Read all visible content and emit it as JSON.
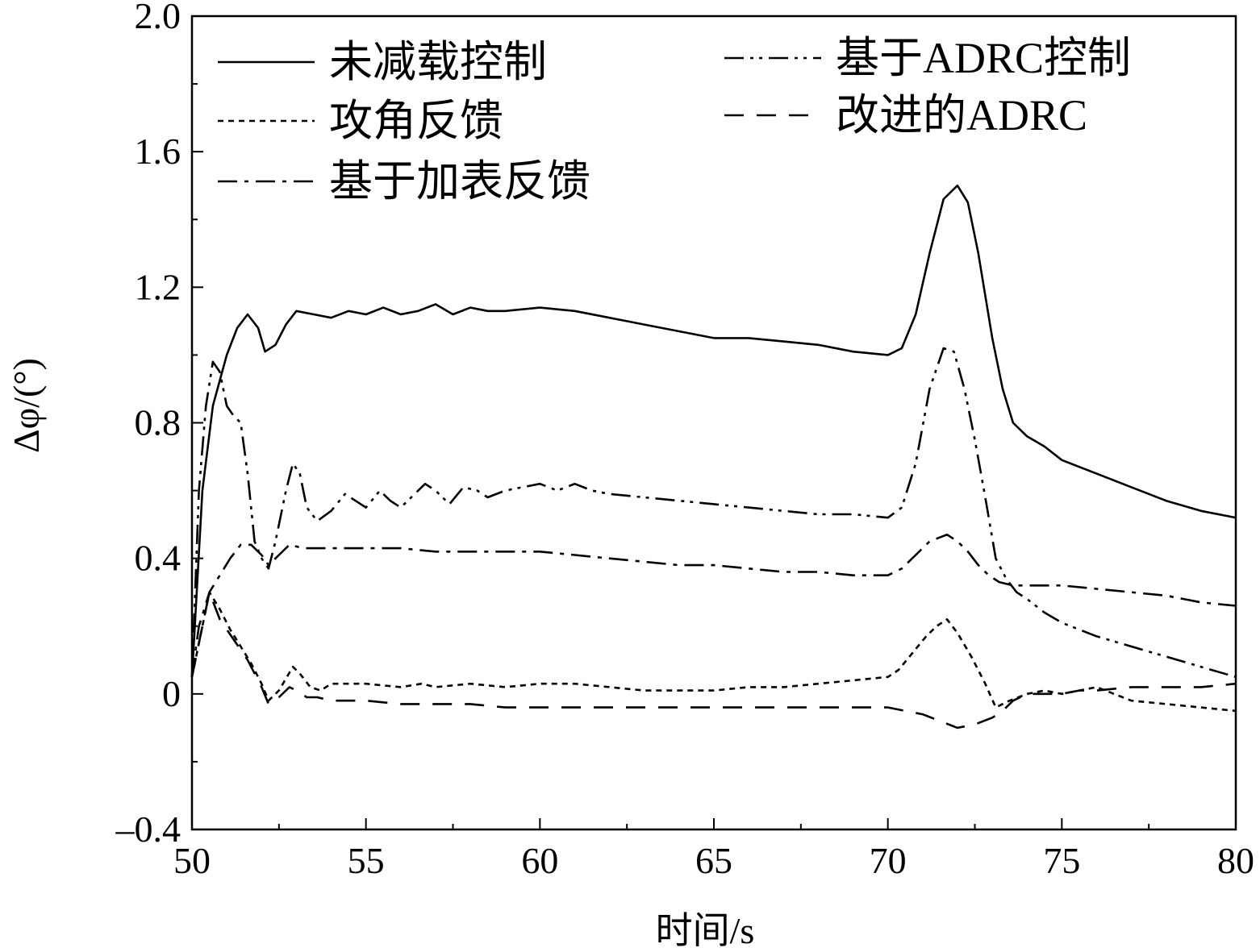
{
  "chart_data": {
    "type": "line",
    "xlabel": "时间/s",
    "ylabel": "Δφ/(°)",
    "xlim": [
      50,
      80
    ],
    "ylim": [
      -0.4,
      2.0
    ],
    "xticks": [
      50,
      55,
      60,
      65,
      70,
      75,
      80
    ],
    "xtick_labels": [
      "50",
      "55",
      "60",
      "65",
      "70",
      "75",
      "80"
    ],
    "yticks": [
      -0.4,
      0,
      0.4,
      0.8,
      1.2,
      1.6,
      2.0
    ],
    "ytick_labels": [
      "–0.4",
      "0",
      "0.4",
      "0.8",
      "1.2",
      "1.6",
      "2.0"
    ],
    "grid": false,
    "legend_placement": "top",
    "series": [
      {
        "name": "未减载控制",
        "style": "solid",
        "x": [
          50,
          50.3,
          50.6,
          51.0,
          51.3,
          51.6,
          51.9,
          52.1,
          52.4,
          52.7,
          53.0,
          53.5,
          54.0,
          54.5,
          55.0,
          55.5,
          56.0,
          56.5,
          57.0,
          57.5,
          58.0,
          58.5,
          59.0,
          60.0,
          61.0,
          62.0,
          63.0,
          64.0,
          65.0,
          66.0,
          67.0,
          68.0,
          69.0,
          70.0,
          70.4,
          70.8,
          71.2,
          71.6,
          72.0,
          72.3,
          72.6,
          73.0,
          73.3,
          73.6,
          74.0,
          74.5,
          75.0,
          75.5,
          76.0,
          77.0,
          78.0,
          79.0,
          80.0
        ],
        "y": [
          0.05,
          0.6,
          0.85,
          1.0,
          1.08,
          1.12,
          1.08,
          1.01,
          1.03,
          1.09,
          1.13,
          1.12,
          1.11,
          1.13,
          1.12,
          1.14,
          1.12,
          1.13,
          1.15,
          1.12,
          1.14,
          1.13,
          1.13,
          1.14,
          1.13,
          1.11,
          1.09,
          1.07,
          1.05,
          1.05,
          1.04,
          1.03,
          1.01,
          1.0,
          1.02,
          1.12,
          1.3,
          1.46,
          1.5,
          1.45,
          1.3,
          1.05,
          0.9,
          0.8,
          0.76,
          0.73,
          0.69,
          0.67,
          0.65,
          0.61,
          0.57,
          0.54,
          0.52
        ]
      },
      {
        "name": "攻角反馈",
        "style": "dotted",
        "x": [
          50,
          50.2,
          50.5,
          50.8,
          51.1,
          51.4,
          51.7,
          52.0,
          52.2,
          52.5,
          52.9,
          53.1,
          53.4,
          53.7,
          54.0,
          55.0,
          56.0,
          56.6,
          57.0,
          58.0,
          59.0,
          60.0,
          61.0,
          62.0,
          63.0,
          64.0,
          65.0,
          66.0,
          67.0,
          68.0,
          69.0,
          70.0,
          70.3,
          70.7,
          71.1,
          71.4,
          71.7,
          72.0,
          72.4,
          72.8,
          73.1,
          73.5,
          74.0,
          74.5,
          75.0,
          75.5,
          76.0,
          76.5,
          77.0,
          78.0,
          79.0,
          80.0
        ],
        "y": [
          0.05,
          0.15,
          0.3,
          0.25,
          0.19,
          0.14,
          0.09,
          0.03,
          -0.02,
          0.01,
          0.08,
          0.06,
          0.02,
          0.01,
          0.03,
          0.03,
          0.02,
          0.03,
          0.02,
          0.03,
          0.02,
          0.03,
          0.03,
          0.02,
          0.01,
          0.01,
          0.01,
          0.02,
          0.02,
          0.03,
          0.04,
          0.05,
          0.07,
          0.12,
          0.17,
          0.2,
          0.22,
          0.18,
          0.11,
          0.03,
          -0.04,
          -0.02,
          0.0,
          0.01,
          0.0,
          0.01,
          0.02,
          0.0,
          -0.02,
          -0.03,
          -0.04,
          -0.05
        ]
      },
      {
        "name": "基于加表反馈",
        "style": "dashdot",
        "x": [
          50,
          50.2,
          50.5,
          50.8,
          51.1,
          51.4,
          51.7,
          52.0,
          52.2,
          52.5,
          52.8,
          53.2,
          54.0,
          55.0,
          56.0,
          57.0,
          58.0,
          59.0,
          60.0,
          61.0,
          62.0,
          63.0,
          64.0,
          65.0,
          66.0,
          67.0,
          68.0,
          69.0,
          70.0,
          70.4,
          70.8,
          71.2,
          71.7,
          72.0,
          72.3,
          72.6,
          72.9,
          73.2,
          73.6,
          74.0,
          75.0,
          76.0,
          77.0,
          78.0,
          79.0,
          80.0
        ],
        "y": [
          0.05,
          0.2,
          0.3,
          0.35,
          0.4,
          0.44,
          0.44,
          0.41,
          0.38,
          0.41,
          0.44,
          0.43,
          0.43,
          0.43,
          0.43,
          0.42,
          0.42,
          0.42,
          0.42,
          0.41,
          0.4,
          0.39,
          0.38,
          0.38,
          0.37,
          0.36,
          0.36,
          0.35,
          0.35,
          0.37,
          0.41,
          0.45,
          0.47,
          0.45,
          0.42,
          0.38,
          0.35,
          0.33,
          0.32,
          0.32,
          0.32,
          0.31,
          0.3,
          0.29,
          0.27,
          0.26
        ]
      },
      {
        "name": "基于ADRC控制",
        "style": "dashdotdot",
        "x": [
          50,
          50.2,
          50.4,
          50.6,
          50.8,
          51.0,
          51.2,
          51.4,
          51.6,
          51.8,
          52.0,
          52.2,
          52.4,
          52.7,
          52.9,
          53.1,
          53.3,
          53.6,
          54.0,
          54.4,
          54.7,
          55.0,
          55.4,
          55.7,
          56.0,
          56.4,
          56.7,
          57.0,
          57.4,
          57.8,
          58.2,
          58.5,
          59.0,
          59.5,
          60.0,
          60.5,
          61.0,
          61.5,
          62.0,
          63.0,
          64.0,
          65.0,
          66.0,
          67.0,
          68.0,
          69.0,
          70.0,
          70.4,
          70.8,
          71.2,
          71.6,
          71.9,
          72.2,
          72.5,
          72.8,
          73.1,
          73.4,
          73.7,
          74.0,
          74.5,
          75.0,
          75.5,
          76.0,
          77.0,
          78.0,
          79.0,
          80.0
        ],
        "y": [
          0.05,
          0.6,
          0.85,
          0.98,
          0.95,
          0.85,
          0.82,
          0.8,
          0.65,
          0.45,
          0.4,
          0.37,
          0.45,
          0.6,
          0.68,
          0.65,
          0.55,
          0.51,
          0.54,
          0.59,
          0.57,
          0.55,
          0.6,
          0.57,
          0.55,
          0.59,
          0.62,
          0.6,
          0.56,
          0.61,
          0.6,
          0.58,
          0.6,
          0.61,
          0.62,
          0.6,
          0.62,
          0.6,
          0.59,
          0.58,
          0.57,
          0.56,
          0.55,
          0.54,
          0.53,
          0.53,
          0.52,
          0.55,
          0.68,
          0.9,
          1.02,
          1.01,
          0.9,
          0.75,
          0.58,
          0.4,
          0.34,
          0.3,
          0.28,
          0.24,
          0.21,
          0.19,
          0.17,
          0.14,
          0.11,
          0.08,
          0.05
        ]
      },
      {
        "name": "改进的ADRC",
        "style": "dashed",
        "x": [
          50,
          50.2,
          50.5,
          50.8,
          51.2,
          51.6,
          52.0,
          52.2,
          52.5,
          52.8,
          53.0,
          53.3,
          53.6,
          54.0,
          55.0,
          56.0,
          57.0,
          58.0,
          59.0,
          60.0,
          61.0,
          62.0,
          63.0,
          64.0,
          65.0,
          66.0,
          67.0,
          68.0,
          69.0,
          70.0,
          70.5,
          71.0,
          71.5,
          72.0,
          72.5,
          73.0,
          73.3,
          73.6,
          74.0,
          74.5,
          75.0,
          75.5,
          76.0,
          77.0,
          78.0,
          79.0,
          80.0
        ],
        "y": [
          0.05,
          0.15,
          0.3,
          0.22,
          0.16,
          0.1,
          0.02,
          -0.03,
          -0.01,
          0.02,
          0.01,
          -0.01,
          -0.01,
          -0.02,
          -0.02,
          -0.03,
          -0.03,
          -0.03,
          -0.04,
          -0.04,
          -0.04,
          -0.04,
          -0.04,
          -0.04,
          -0.04,
          -0.04,
          -0.04,
          -0.04,
          -0.04,
          -0.04,
          -0.05,
          -0.06,
          -0.08,
          -0.1,
          -0.09,
          -0.07,
          -0.05,
          -0.02,
          0.0,
          0.0,
          0.0,
          0.01,
          0.01,
          0.02,
          0.02,
          0.02,
          0.03
        ]
      }
    ]
  }
}
